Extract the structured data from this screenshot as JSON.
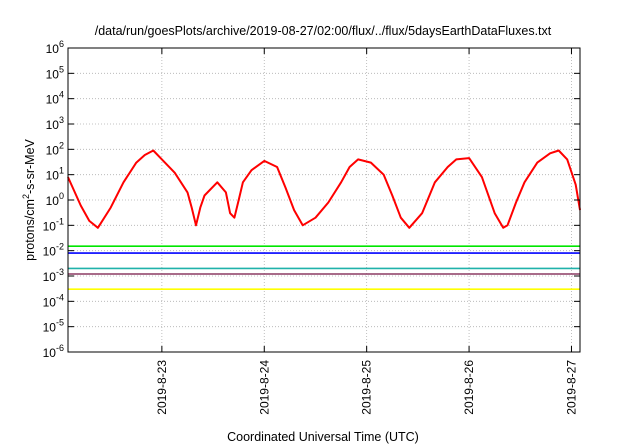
{
  "chart_data": {
    "type": "line",
    "title": "/data/run/goesPlots/archive/2019-08-27/02:00/flux/../flux/5daysEarthDataFluxes.txt",
    "xlabel": "Coordinated Universal Time (UTC)",
    "ylabel": "protons/cm2-s-sr-MeV",
    "ylabel_parts": {
      "base": "protons/cm",
      "sup": "2",
      "rest": "-s-sr-MeV"
    },
    "yscale": "log",
    "ylim": [
      1e-06,
      1000000.0
    ],
    "yticks": [
      {
        "value": 1e-06,
        "base": "10",
        "exp": "-6"
      },
      {
        "value": 1e-05,
        "base": "10",
        "exp": "-5"
      },
      {
        "value": 0.0001,
        "base": "10",
        "exp": "-4"
      },
      {
        "value": 0.001,
        "base": "10",
        "exp": "-3"
      },
      {
        "value": 0.01,
        "base": "10",
        "exp": "-2"
      },
      {
        "value": 0.1,
        "base": "10",
        "exp": "-1"
      },
      {
        "value": 1,
        "base": "10",
        "exp": "0"
      },
      {
        "value": 10.0,
        "base": "10",
        "exp": "1"
      },
      {
        "value": 100.0,
        "base": "10",
        "exp": "2"
      },
      {
        "value": 1000.0,
        "base": "10",
        "exp": "3"
      },
      {
        "value": 10000.0,
        "base": "10",
        "exp": "4"
      },
      {
        "value": 100000.0,
        "base": "10",
        "exp": "5"
      },
      {
        "value": 1000000.0,
        "base": "10",
        "exp": "6"
      }
    ],
    "xlim": [
      "2019-08-22 02:00",
      "2019-08-27 02:00"
    ],
    "xticks": [
      "2019-8-23",
      "2019-8-24",
      "2019-8-25",
      "2019-8-26",
      "2019-8-27"
    ],
    "grid": true,
    "legend": "none",
    "series": [
      {
        "color": "#ff0000",
        "x": [
          "2019-08-22 02:00",
          "2019-08-22 05:00",
          "2019-08-22 07:00",
          "2019-08-22 09:00",
          "2019-08-22 12:00",
          "2019-08-22 15:00",
          "2019-08-22 18:00",
          "2019-08-22 20:00",
          "2019-08-22 22:00",
          "2019-08-23 00:00",
          "2019-08-23 03:00",
          "2019-08-23 06:00",
          "2019-08-23 07:00",
          "2019-08-23 08:00",
          "2019-08-23 09:00",
          "2019-08-23 10:00",
          "2019-08-23 13:00",
          "2019-08-23 15:00",
          "2019-08-23 16:00",
          "2019-08-23 17:00",
          "2019-08-23 18:00",
          "2019-08-23 19:00",
          "2019-08-23 21:00",
          "2019-08-24 00:00",
          "2019-08-24 03:00",
          "2019-08-24 05:00",
          "2019-08-24 07:00",
          "2019-08-24 09:00",
          "2019-08-24 12:00",
          "2019-08-24 15:00",
          "2019-08-24 18:00",
          "2019-08-24 20:00",
          "2019-08-24 22:00",
          "2019-08-25 01:00",
          "2019-08-25 04:00",
          "2019-08-25 06:00",
          "2019-08-25 08:00",
          "2019-08-25 10:00",
          "2019-08-25 13:00",
          "2019-08-25 16:00",
          "2019-08-25 19:00",
          "2019-08-25 21:00",
          "2019-08-26 00:00",
          "2019-08-26 03:00",
          "2019-08-26 06:00",
          "2019-08-26 08:00",
          "2019-08-26 09:00",
          "2019-08-26 11:00",
          "2019-08-26 13:00",
          "2019-08-26 16:00",
          "2019-08-26 19:00",
          "2019-08-26 21:00",
          "2019-08-26 23:00",
          "2019-08-27 01:00",
          "2019-08-27 02:00"
        ],
        "y": [
          8,
          0.6,
          0.15,
          0.08,
          0.5,
          5,
          30,
          60,
          90,
          40,
          12,
          2,
          0.5,
          0.1,
          0.5,
          1.5,
          5,
          2,
          0.3,
          0.2,
          1,
          5,
          15,
          35,
          20,
          3,
          0.4,
          0.1,
          0.2,
          0.8,
          5,
          20,
          40,
          30,
          10,
          1.5,
          0.2,
          0.08,
          0.3,
          5,
          20,
          40,
          45,
          8,
          0.3,
          0.08,
          0.1,
          0.8,
          5,
          30,
          70,
          90,
          40,
          4,
          0.4
        ]
      },
      {
        "color": "#00e600",
        "x": [
          "2019-08-22 02:00",
          "2019-08-23 02:00",
          "2019-08-24 02:00",
          "2019-08-25 02:00",
          "2019-08-26 02:00",
          "2019-08-27 02:00"
        ],
        "y": [
          0.015,
          0.015,
          0.015,
          0.015,
          0.015,
          0.015
        ]
      },
      {
        "color": "#0000ff",
        "x": [
          "2019-08-22 02:00",
          "2019-08-23 02:00",
          "2019-08-24 02:00",
          "2019-08-25 02:00",
          "2019-08-26 02:00",
          "2019-08-27 02:00"
        ],
        "y": [
          0.008,
          0.008,
          0.008,
          0.008,
          0.008,
          0.008
        ]
      },
      {
        "color": "#20b2aa",
        "x": [
          "2019-08-22 02:00",
          "2019-08-23 02:00",
          "2019-08-24 02:00",
          "2019-08-25 02:00",
          "2019-08-26 02:00",
          "2019-08-27 02:00"
        ],
        "y": [
          0.002,
          0.002,
          0.002,
          0.002,
          0.002,
          0.002
        ]
      },
      {
        "color": "#8b3a62",
        "x": [
          "2019-08-22 02:00",
          "2019-08-23 02:00",
          "2019-08-24 02:00",
          "2019-08-25 02:00",
          "2019-08-26 02:00",
          "2019-08-27 02:00"
        ],
        "y": [
          0.0012,
          0.0012,
          0.0012,
          0.0012,
          0.0012,
          0.0012
        ]
      },
      {
        "color": "#ffff00",
        "x": [
          "2019-08-22 02:00",
          "2019-08-23 02:00",
          "2019-08-24 02:00",
          "2019-08-25 02:00",
          "2019-08-26 02:00",
          "2019-08-27 02:00"
        ],
        "y": [
          0.0003,
          0.0003,
          0.0003,
          0.0003,
          0.0003,
          0.0003
        ]
      }
    ]
  }
}
